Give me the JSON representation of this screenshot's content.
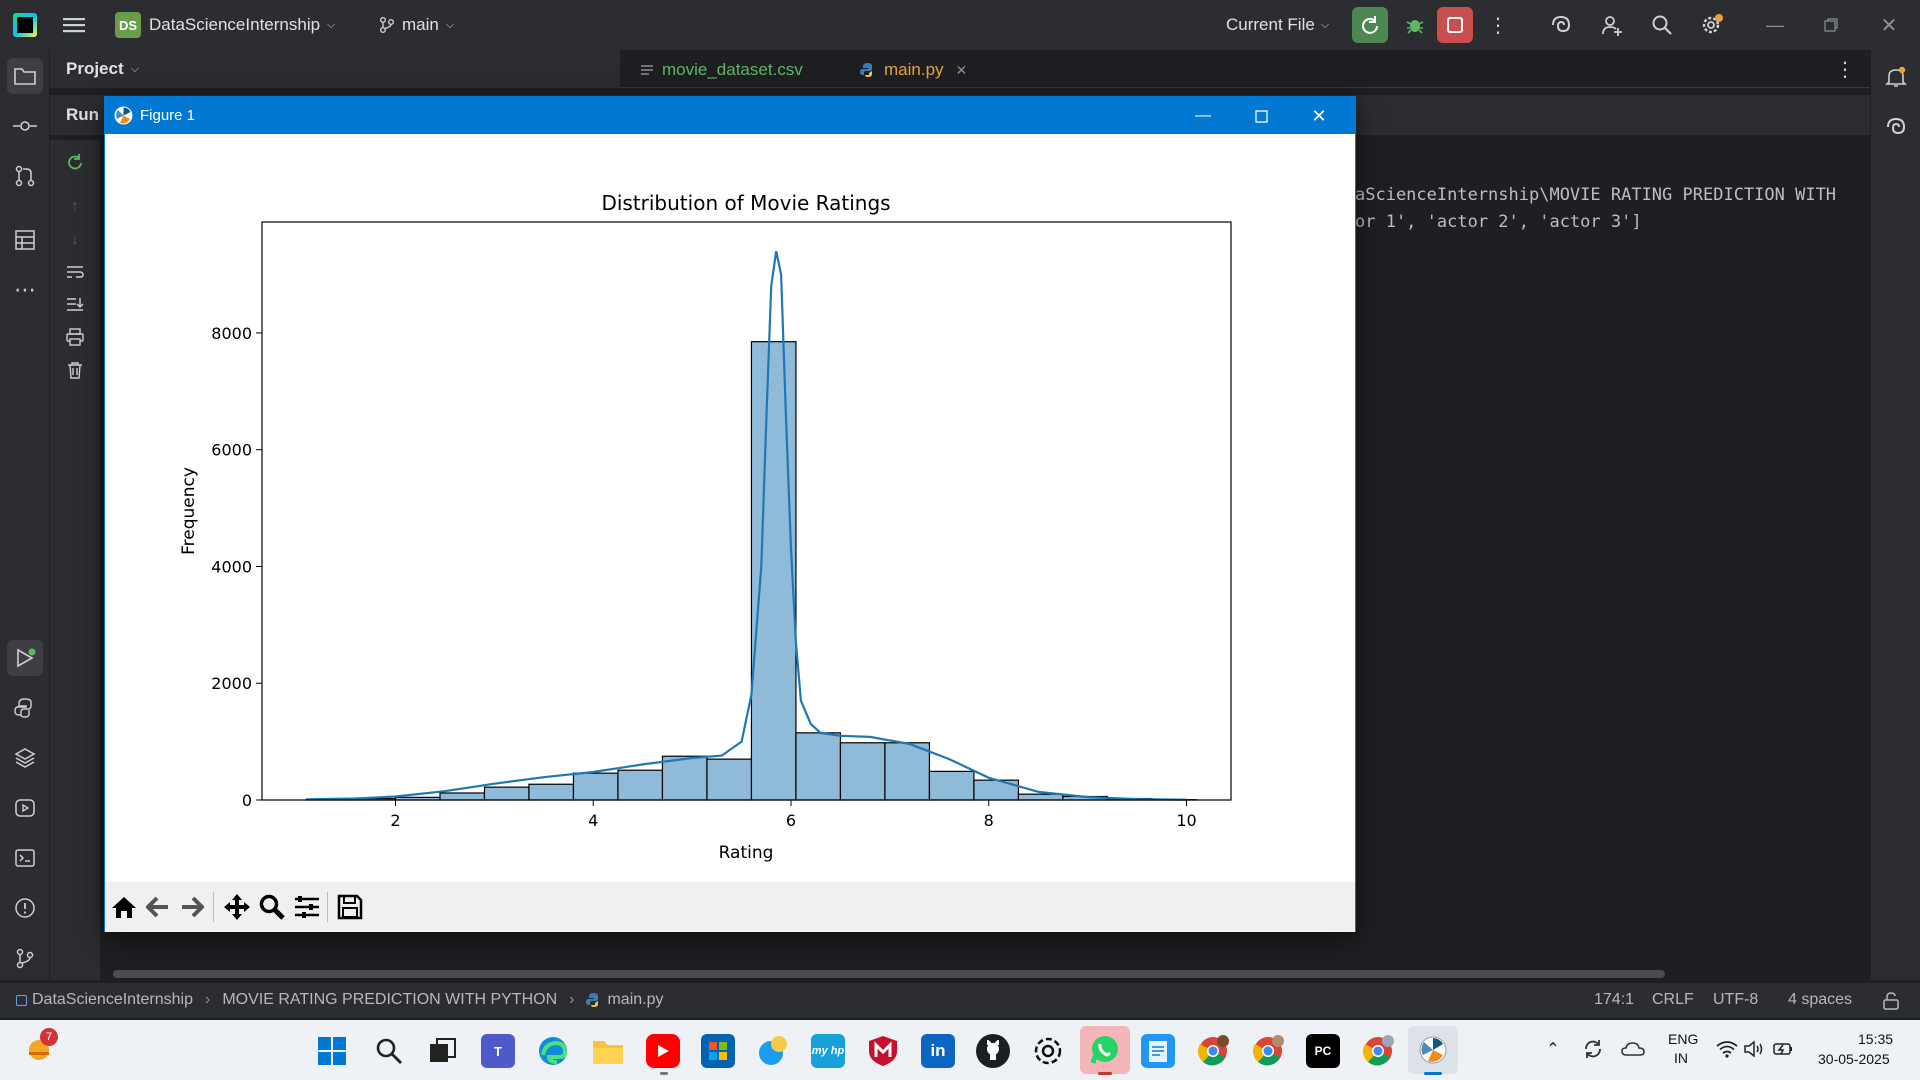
{
  "ide": {
    "project_badge": "DS",
    "project_name": "DataScienceInternship",
    "branch": "main",
    "run_config": "Current File"
  },
  "tool_window": {
    "project_label": "Project",
    "run_label": "Run"
  },
  "editor_tabs": [
    {
      "label": "movie_dataset.csv"
    },
    {
      "label": "main.py"
    }
  ],
  "console": {
    "line1": "aScienceInternship\\MOVIE RATING PREDICTION WITH",
    "line2": "or 1', 'actor 2', 'actor 3']"
  },
  "figure": {
    "window_title": "Figure 1"
  },
  "chart_data": {
    "type": "bar",
    "title": "Distribution of Movie Ratings",
    "xlabel": "Rating",
    "ylabel": "Frequency",
    "xlim": [
      0.65,
      10.45
    ],
    "ylim": [
      0,
      9900
    ],
    "xticks": [
      2,
      4,
      6,
      8,
      10
    ],
    "yticks": [
      0,
      2000,
      4000,
      6000,
      8000
    ],
    "bin_edges": [
      1.1,
      1.55,
      2.0,
      2.45,
      2.9,
      3.35,
      3.8,
      4.25,
      4.7,
      5.15,
      5.6,
      6.05,
      6.5,
      6.95,
      7.4,
      7.85,
      8.3,
      8.75,
      9.2,
      9.65,
      10.1
    ],
    "values": [
      15,
      25,
      45,
      120,
      220,
      270,
      460,
      510,
      750,
      700,
      7850,
      1150,
      980,
      980,
      490,
      340,
      100,
      60,
      25,
      5
    ],
    "bar_color": "#8fbbd9",
    "kde_color": "#1f77b4",
    "kde": {
      "x": [
        1.1,
        1.6,
        2.0,
        2.5,
        3.0,
        3.5,
        4.0,
        4.5,
        5.0,
        5.3,
        5.5,
        5.6,
        5.7,
        5.75,
        5.8,
        5.85,
        5.9,
        5.95,
        6.0,
        6.05,
        6.1,
        6.2,
        6.3,
        6.5,
        6.8,
        7.2,
        7.6,
        8.0,
        8.5,
        9.0,
        9.5,
        10.0
      ],
      "y": [
        10,
        25,
        60,
        150,
        280,
        390,
        480,
        610,
        720,
        760,
        1000,
        1800,
        4000,
        6500,
        8800,
        9400,
        9000,
        6500,
        4300,
        2700,
        1700,
        1300,
        1150,
        1100,
        1080,
        960,
        700,
        380,
        140,
        50,
        15,
        5
      ]
    }
  },
  "statusbar": {
    "crumb1": "DataScienceInternship",
    "crumb2": "MOVIE RATING PREDICTION WITH PYTHON",
    "crumb3": "main.py",
    "position": "174:1",
    "line_sep": "CRLF",
    "encoding": "UTF-8",
    "indent": "4 spaces"
  },
  "taskbar": {
    "lang1": "ENG",
    "lang2": "IN",
    "time": "15:35",
    "date": "30-05-2025",
    "weather_badge": "7"
  }
}
